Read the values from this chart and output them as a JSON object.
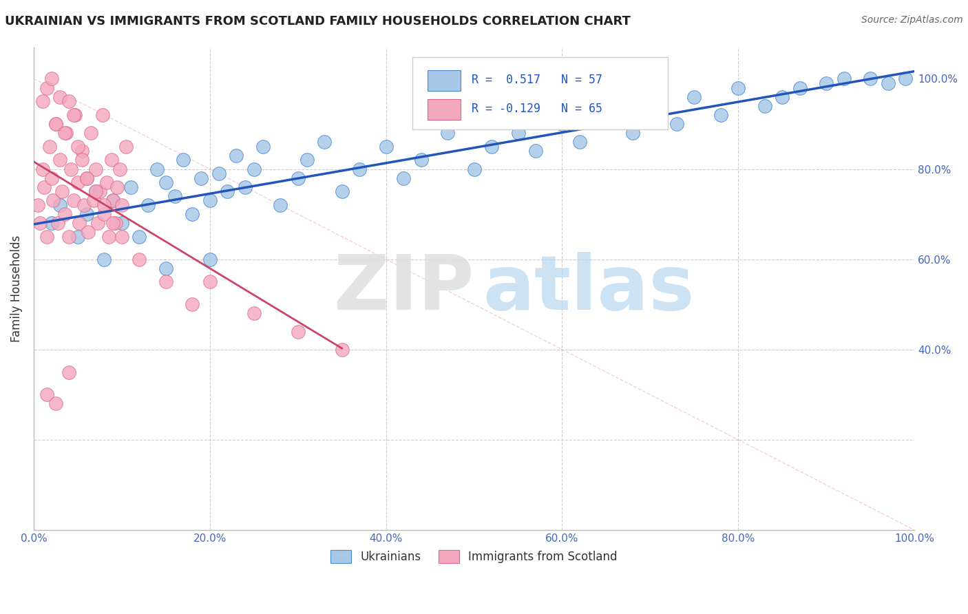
{
  "title": "UKRAINIAN VS IMMIGRANTS FROM SCOTLAND FAMILY HOUSEHOLDS CORRELATION CHART",
  "source": "Source: ZipAtlas.com",
  "ylabel": "Family Households",
  "r1": 0.517,
  "n1": 57,
  "r2": -0.129,
  "n2": 65,
  "legend_label1": "Ukrainians",
  "legend_label2": "Immigrants from Scotland",
  "color_blue": "#a8c8e8",
  "color_pink": "#f4a8c0",
  "edge_blue": "#4488cc",
  "edge_pink": "#dd6688",
  "line_blue": "#2255bb",
  "line_pink": "#cc4466",
  "line_dash": "#f0b0c0",
  "watermark_ZIP": "#e0e0e0",
  "watermark_atlas": "#b8d8f0",
  "xtick_color": "#4466bb",
  "ytick_color": "#4466bb",
  "title_color": "#222222",
  "source_color": "#666666",
  "ylabel_color": "#333333",
  "grid_color": "#cccccc"
}
